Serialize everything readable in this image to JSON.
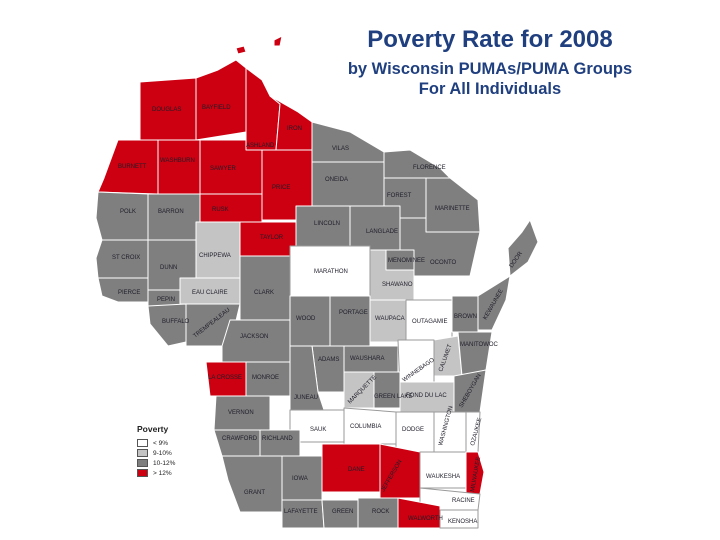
{
  "title": "Poverty Rate for 2008",
  "subtitle_1": "by Wisconsin PUMAs/PUMA Groups",
  "subtitle_2": "For All Individuals",
  "colors": {
    "lt8": "#ffffff",
    "9to10": "#c4c4c4",
    "10to12": "#7f7f7f",
    "gt12": "#cc0011"
  },
  "legend": {
    "title": "Poverty",
    "items": [
      {
        "label": "< 9%",
        "class": "lt8"
      },
      {
        "label": "9-10%",
        "class": "9to10"
      },
      {
        "label": "10-12%",
        "class": "10to12"
      },
      {
        "label": "> 12%",
        "class": "gt12"
      }
    ]
  },
  "counties": {
    "douglas": "DOUGLAS",
    "bayfield": "BAYFIELD",
    "ashland": "ASHLAND",
    "iron": "IRON",
    "vilas": "VILAS",
    "burnett": "BURNETT",
    "washburn": "WASHBURN",
    "sawyer": "SAWYER",
    "price": "PRICE",
    "oneida": "ONEIDA",
    "florence": "FLORENCE",
    "forest": "FOREST",
    "marinette": "MARINETTE",
    "polk": "POLK",
    "barron": "BARRON",
    "rusk": "RUSK",
    "taylor": "TAYLOR",
    "lincoln": "LINCOLN",
    "langlade": "LANGLADE",
    "door": "DOOR",
    "stcroix": "ST CROIX",
    "dunn": "DUNN",
    "chippewa": "CHIPPEWA",
    "marathon": "MARATHON",
    "menominee": "MENOMINEE",
    "oconto": "OCONTO",
    "pierce": "PIERCE",
    "pepin": "PEPIN",
    "eauclaire": "EAU CLAIRE",
    "clark": "CLARK",
    "shawano": "SHAWANO",
    "kewaunee": "KEWAUNEE",
    "buffalo": "BUFFALO",
    "trempealeau": "TREMPEALEAU",
    "jackson": "JACKSON",
    "wood": "WOOD",
    "portage": "PORTAGE",
    "waupaca": "WAUPACA",
    "outagamie": "OUTAGAMIE",
    "brown": "BROWN",
    "calumet": "CALUMET",
    "manitowoc": "MANITOWOC",
    "adams": "ADAMS",
    "waushara": "WAUSHARA",
    "winnebago": "WINNEBAGO",
    "lacrosse": "LA CROSSE",
    "monroe": "MONROE",
    "marquette": "MARQUETTE",
    "green_lake": "GREEN LAKE",
    "fonddulac": "FOND DU LAC",
    "sheboygan": "SHEBOYGAN",
    "juneau": "JUNEAU",
    "vernon": "VERNON",
    "sauk": "SAUK",
    "columbia": "COLUMBIA",
    "dodge": "DODGE",
    "washington": "WASHINGTON",
    "ozaukee": "OZAUKEE",
    "crawford": "CRAWFORD",
    "richland": "RICHLAND",
    "dane": "DANE",
    "jefferson": "JEFFERSON",
    "waukesha": "WAUKESHA",
    "milwaukee": "MILWAUKEE",
    "grant": "GRANT",
    "iowa": "IOWA",
    "racine": "RACINE",
    "lafayette": "LAFAYETTE",
    "green": "GREEN",
    "rock": "ROCK",
    "walworth": "WALWORTH",
    "kenosha": "KENOSHA"
  }
}
